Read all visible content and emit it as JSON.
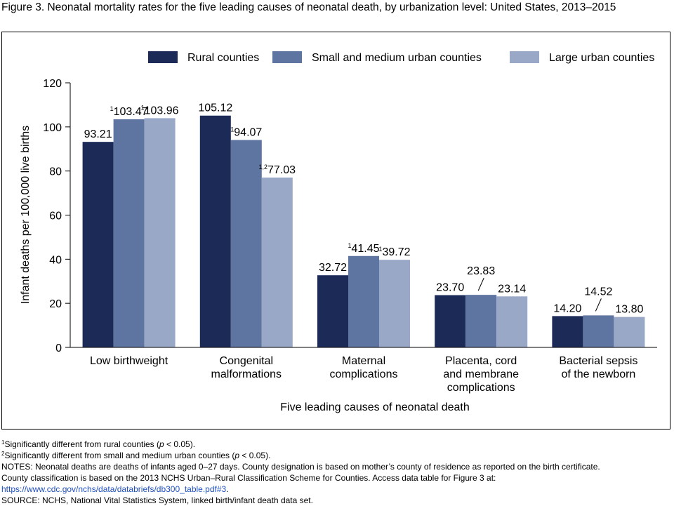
{
  "figure_title": "Figure 3. Neonatal mortality rates for the five leading causes of neonatal death, by urbanization level: United States, 2013–2015",
  "colors": {
    "rural": "#1b2a57",
    "small_medium": "#5f75a1",
    "large": "#9aa8c8",
    "link": "#1f4fbf"
  },
  "chart_data": {
    "type": "bar",
    "title": "",
    "xlabel": "Five leading causes of neonatal death",
    "ylabel": "Infant deaths per 100,000 live births",
    "ylim": [
      0,
      120
    ],
    "yticks": [
      0,
      20,
      40,
      60,
      80,
      100,
      120
    ],
    "legend_position": "top-right",
    "grid": false,
    "categories": [
      [
        "Low birthweight"
      ],
      [
        "Congenital",
        "malformations"
      ],
      [
        "Maternal",
        "complications"
      ],
      [
        "Placenta, cord",
        "and membrane",
        "complications"
      ],
      [
        "Bacterial sepsis",
        "of the newborn"
      ]
    ],
    "series": [
      {
        "name": "Rural counties",
        "color": "#1b2a57",
        "values": [
          93.21,
          105.12,
          32.72,
          23.7,
          14.2
        ],
        "labels": [
          "93.21",
          "105.12",
          "32.72",
          "23.70",
          "14.20"
        ],
        "superscripts": [
          "",
          "",
          "",
          "",
          ""
        ]
      },
      {
        "name": "Small and medium urban counties",
        "color": "#5f75a1",
        "values": [
          103.47,
          94.07,
          41.45,
          23.83,
          14.52
        ],
        "labels": [
          "103.47",
          "94.07",
          "41.45",
          "23.83",
          "14.52"
        ],
        "superscripts": [
          "1",
          "1",
          "1",
          "",
          ""
        ]
      },
      {
        "name": "Large urban counties",
        "color": "#9aa8c8",
        "values": [
          103.96,
          77.03,
          39.72,
          23.14,
          13.8
        ],
        "labels": [
          "103.96",
          "77.03",
          "39.72",
          "23.14",
          "13.80"
        ],
        "superscripts": [
          "1",
          "1,2",
          "1",
          "",
          ""
        ]
      }
    ]
  },
  "notes": {
    "footnote1_mark": "1",
    "footnote1_text": "Significantly different from rural counties (",
    "footnote1_p": "p",
    "footnote1_tail": " < 0.05).",
    "footnote2_mark": "2",
    "footnote2_text": "Significantly different from small and medium urban counties (",
    "footnote2_p": "p",
    "footnote2_tail": " < 0.05).",
    "notes_line1": "NOTES: Neonatal deaths are deaths of infants aged 0–27 days. County designation is based on mother’s county of residence as reported on the birth certificate.",
    "notes_line2": "County classification is based on the 2013 NCHS Urban–Rural Classification Scheme for Counties. Access data table for Figure 3 at:",
    "notes_link": "https://www.cdc.gov/nchs/data/databriefs/db300_table.pdf#3",
    "notes_link_tail": ".",
    "source": "SOURCE: NCHS, National Vital Statistics System, linked birth/infant death data set."
  }
}
